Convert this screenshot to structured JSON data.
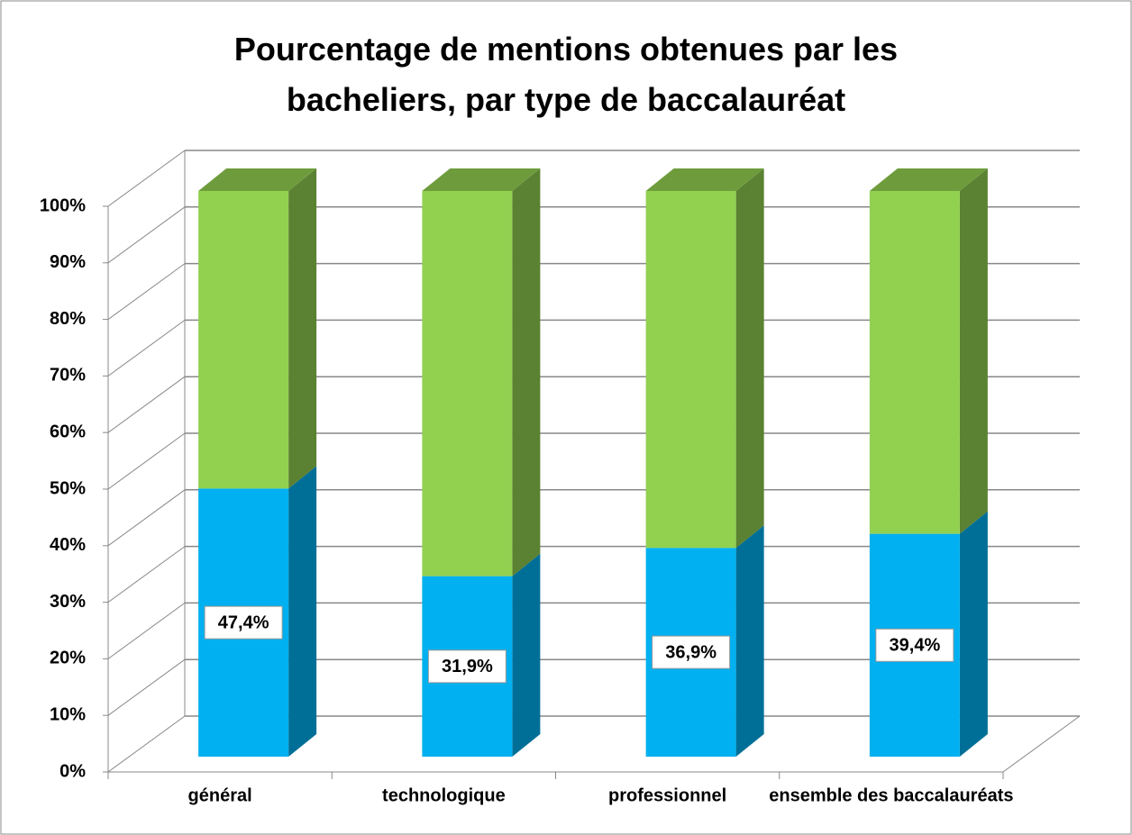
{
  "chart_data": {
    "type": "bar3d_stacked",
    "title": "Pourcentage de mentions obtenues par les bacheliers, par type de baccalauréat",
    "categories": [
      "général",
      "technologique",
      "professionnel",
      "ensemble des baccalauréats"
    ],
    "series": [
      {
        "color": "#00b0f0",
        "values": [
          47.4,
          31.9,
          36.9,
          39.4
        ],
        "value_labels": [
          "47,4%",
          "31,9%",
          "36,9%",
          "39,4%"
        ]
      },
      {
        "color": "#92d050",
        "values": [
          52.6,
          68.1,
          63.1,
          60.6
        ]
      }
    ],
    "ylim": [
      0,
      100
    ],
    "yticks": [
      {
        "value": 0,
        "label": "0%"
      },
      {
        "value": 10,
        "label": "10%"
      },
      {
        "value": 20,
        "label": "20%"
      },
      {
        "value": 30,
        "label": "30%"
      },
      {
        "value": 40,
        "label": "40%"
      },
      {
        "value": 50,
        "label": "50%"
      },
      {
        "value": 60,
        "label": "60%"
      },
      {
        "value": 70,
        "label": "70%"
      },
      {
        "value": 80,
        "label": "80%"
      },
      {
        "value": 90,
        "label": "90%"
      },
      {
        "value": 100,
        "label": "100%"
      }
    ],
    "grid": true
  }
}
